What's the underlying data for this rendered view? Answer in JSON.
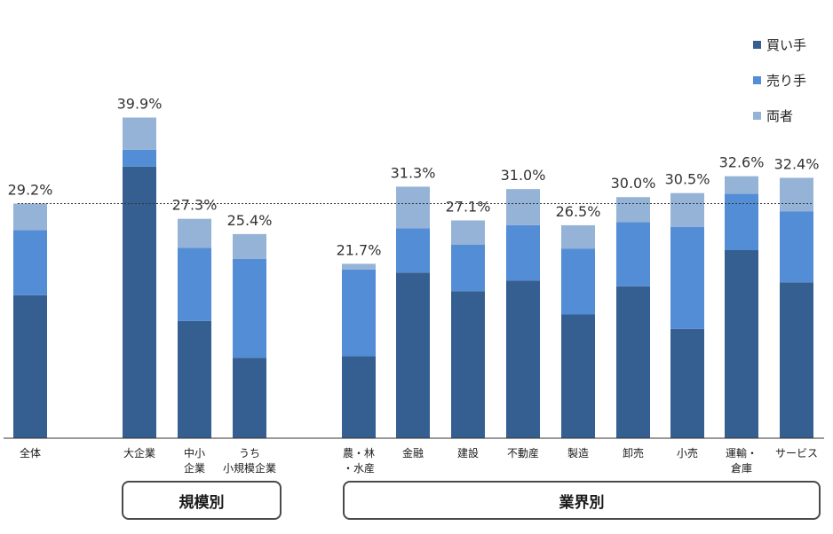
{
  "chart_data": {
    "type": "bar",
    "stacked": true,
    "categories": [
      "全体",
      "大企業",
      "中小企業",
      "うち小規模企業",
      "農・林・水産",
      "金融",
      "建設",
      "不動産",
      "製造",
      "卸売",
      "小売",
      "運輸・倉庫",
      "サービス"
    ],
    "category_lines": [
      [
        "全体"
      ],
      [
        "大企業"
      ],
      [
        "中小",
        "企業"
      ],
      [
        "うち",
        "小規模企業"
      ],
      [
        "農・林",
        "・水産"
      ],
      [
        "金融"
      ],
      [
        "建設"
      ],
      [
        "不動産"
      ],
      [
        "製造"
      ],
      [
        "卸売"
      ],
      [
        "小売"
      ],
      [
        "運輸・",
        "倉庫"
      ],
      [
        "サービス"
      ]
    ],
    "totals_labels": [
      "29.2%",
      "39.9%",
      "27.3%",
      "25.4%",
      "21.7%",
      "31.3%",
      "27.1%",
      "31.0%",
      "26.5%",
      "30.0%",
      "30.5%",
      "32.6%",
      "32.4%"
    ],
    "series": [
      {
        "name": "買い手",
        "color": "#365f91",
        "values": [
          17.8,
          33.8,
          14.6,
          10.0,
          10.2,
          20.6,
          18.3,
          19.6,
          15.4,
          18.9,
          13.6,
          23.4,
          19.4
        ]
      },
      {
        "name": "売り手",
        "color": "#538dd5",
        "values": [
          8.1,
          2.1,
          9.1,
          12.3,
          10.8,
          5.5,
          5.8,
          6.9,
          8.2,
          8.0,
          12.7,
          7.0,
          8.8
        ]
      },
      {
        "name": "両者",
        "color": "#95b3d7",
        "values": [
          3.3,
          4.0,
          3.6,
          3.1,
          0.7,
          5.2,
          3.0,
          4.5,
          2.9,
          3.1,
          4.2,
          2.2,
          4.2
        ]
      }
    ],
    "reference_line": 29.2,
    "ylim": [
      0,
      40
    ],
    "legend_position": "top-right",
    "grid": false,
    "groups": [
      {
        "label": "規模別"
      },
      {
        "label": "業界別"
      }
    ]
  }
}
